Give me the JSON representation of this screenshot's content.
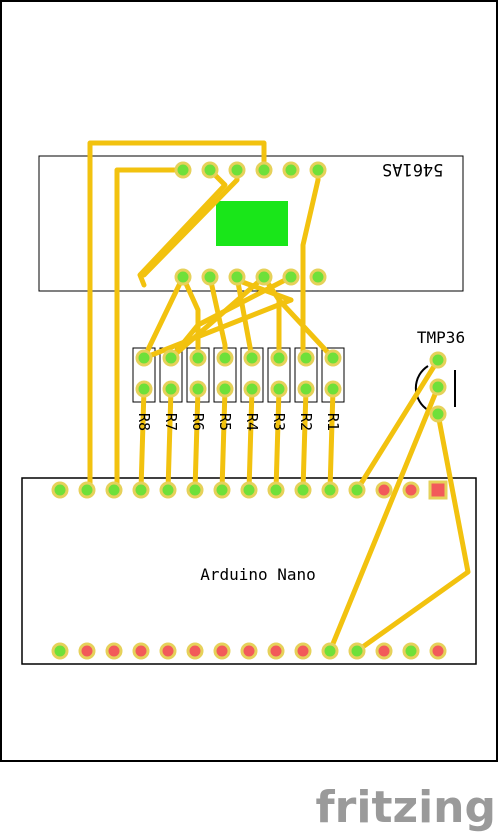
{
  "display": {
    "label": "5461AS"
  },
  "sensor": {
    "label": "TMP36"
  },
  "board": {
    "label": "Arduino Nano"
  },
  "resistors": [
    "R8",
    "R7",
    "R6",
    "R5",
    "R4",
    "R3",
    "R2",
    "R1"
  ],
  "brand": "fritzing",
  "colors": {
    "trace": "#f2c20f",
    "pad_connected": "#6ee03a",
    "pad_unconnected": "#f25a5a",
    "pad_ring": "#e6d15a",
    "display_segment": "#19e619",
    "brand": "#9a9a9a"
  }
}
